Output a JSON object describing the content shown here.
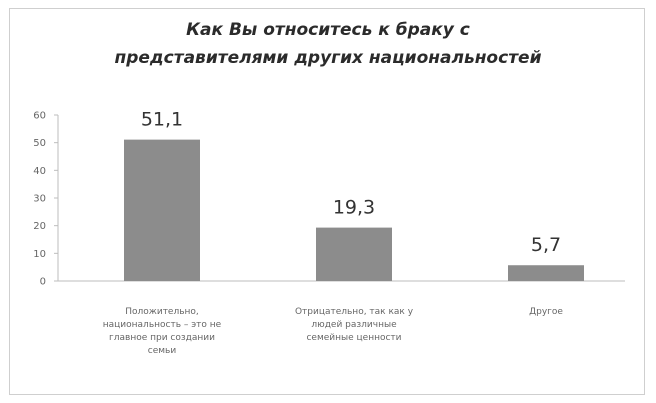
{
  "chart_data": {
    "type": "bar",
    "title_lines": [
      "Как Вы относитесь к браку с",
      "представителями других национальностей"
    ],
    "categories": [
      [
        "Положительно,",
        "национальность – это не",
        "главное при создании",
        "семьи"
      ],
      [
        "Отрицательно, так как у",
        "людей различные",
        "семейные ценности"
      ],
      [
        "Другое"
      ]
    ],
    "values": [
      51.1,
      19.3,
      5.7
    ],
    "data_labels": [
      "51,1",
      "19,3",
      "5,7"
    ],
    "yticks": [
      "0",
      "10",
      "20",
      "30",
      "40",
      "50",
      "60"
    ],
    "ylim": [
      0,
      60
    ],
    "xlabel": "",
    "ylabel": "",
    "grid": false,
    "legend": "none",
    "bar_color": "#8c8c8c",
    "axis_color": "#bdbdbd"
  }
}
